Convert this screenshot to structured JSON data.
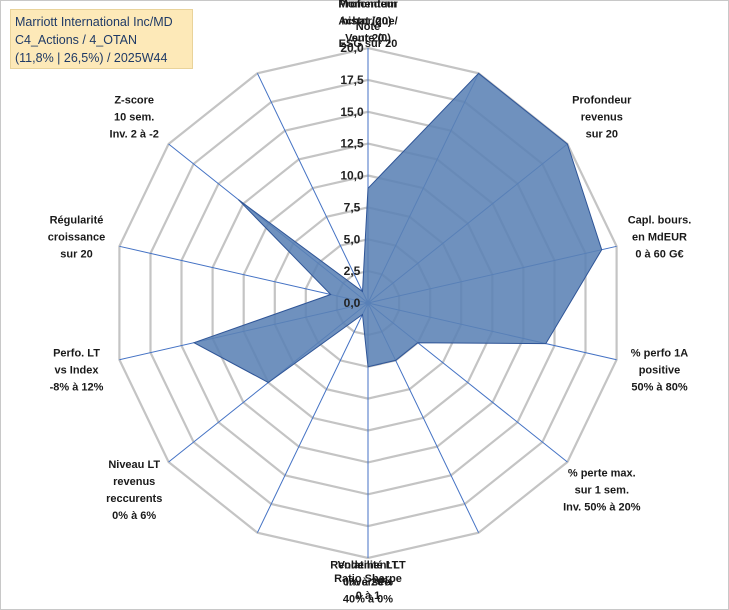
{
  "title_box": {
    "line1": "Marriott International Inc/MD",
    "line2": "C4_Actions / 4_OTAN",
    "line3": "(11,8% | 26,5%) / 2025W44"
  },
  "colors": {
    "fill": "#5b82b5",
    "stroke": "#2f5597",
    "grid": "#c4c4c4",
    "spoke": "#4472c4",
    "title_bg": "#fde9b8"
  },
  "chart_data": {
    "type": "radar",
    "rmax": 20,
    "ticks": [
      "0,0",
      "2,5",
      "5,0",
      "7,5",
      "10,0",
      "12,5",
      "15,0",
      "17,5",
      "20,0"
    ],
    "axes": [
      {
        "label": [
          "Note",
          "ESG sur 20"
        ],
        "value": 9.0
      },
      {
        "label": [
          "Profondeur",
          "historique",
          "sur 20"
        ],
        "value": 20.0
      },
      {
        "label": [
          "Profondeur",
          "revenus",
          "sur 20"
        ],
        "value": 20.0
      },
      {
        "label": [
          "Capl. bours.",
          "en MdEUR",
          "0 à 60 G€"
        ],
        "value": 18.8
      },
      {
        "label": [
          "% perfo 1A",
          "positive",
          "50% à 80%"
        ],
        "value": 14.3
      },
      {
        "label": [
          "% perte max.",
          "sur 1 sem.",
          "Inv. 50% à 20%"
        ],
        "value": 5.0
      },
      {
        "label": [
          "Volatilité LT",
          "Inversée",
          "40% à 0%"
        ],
        "value": 5.0
      },
      {
        "label": [
          "Ratio Sharpe",
          "0 à 1"
        ],
        "value": 5.0
      },
      {
        "label": [
          "Rendement LT",
          "0% à 20%"
        ],
        "value": 1.0
      },
      {
        "label": [
          "Niveau LT",
          "revenus",
          "reccurents",
          "0% à 6%"
        ],
        "value": 10.0
      },
      {
        "label": [
          "Perfo. LT",
          "vs Index",
          "-8% à 12%"
        ],
        "value": 14.0
      },
      {
        "label": [
          "Régularité",
          "croissance",
          "sur 20"
        ],
        "value": 3.0
      },
      {
        "label": [
          "Z-score",
          "10 sem.",
          "Inv. 2 à -2"
        ],
        "value": 13.0
      },
      {
        "label": [
          "Momentum",
          "Achat (20) /",
          "Vente (0)"
        ],
        "value": 1.0
      }
    ]
  }
}
